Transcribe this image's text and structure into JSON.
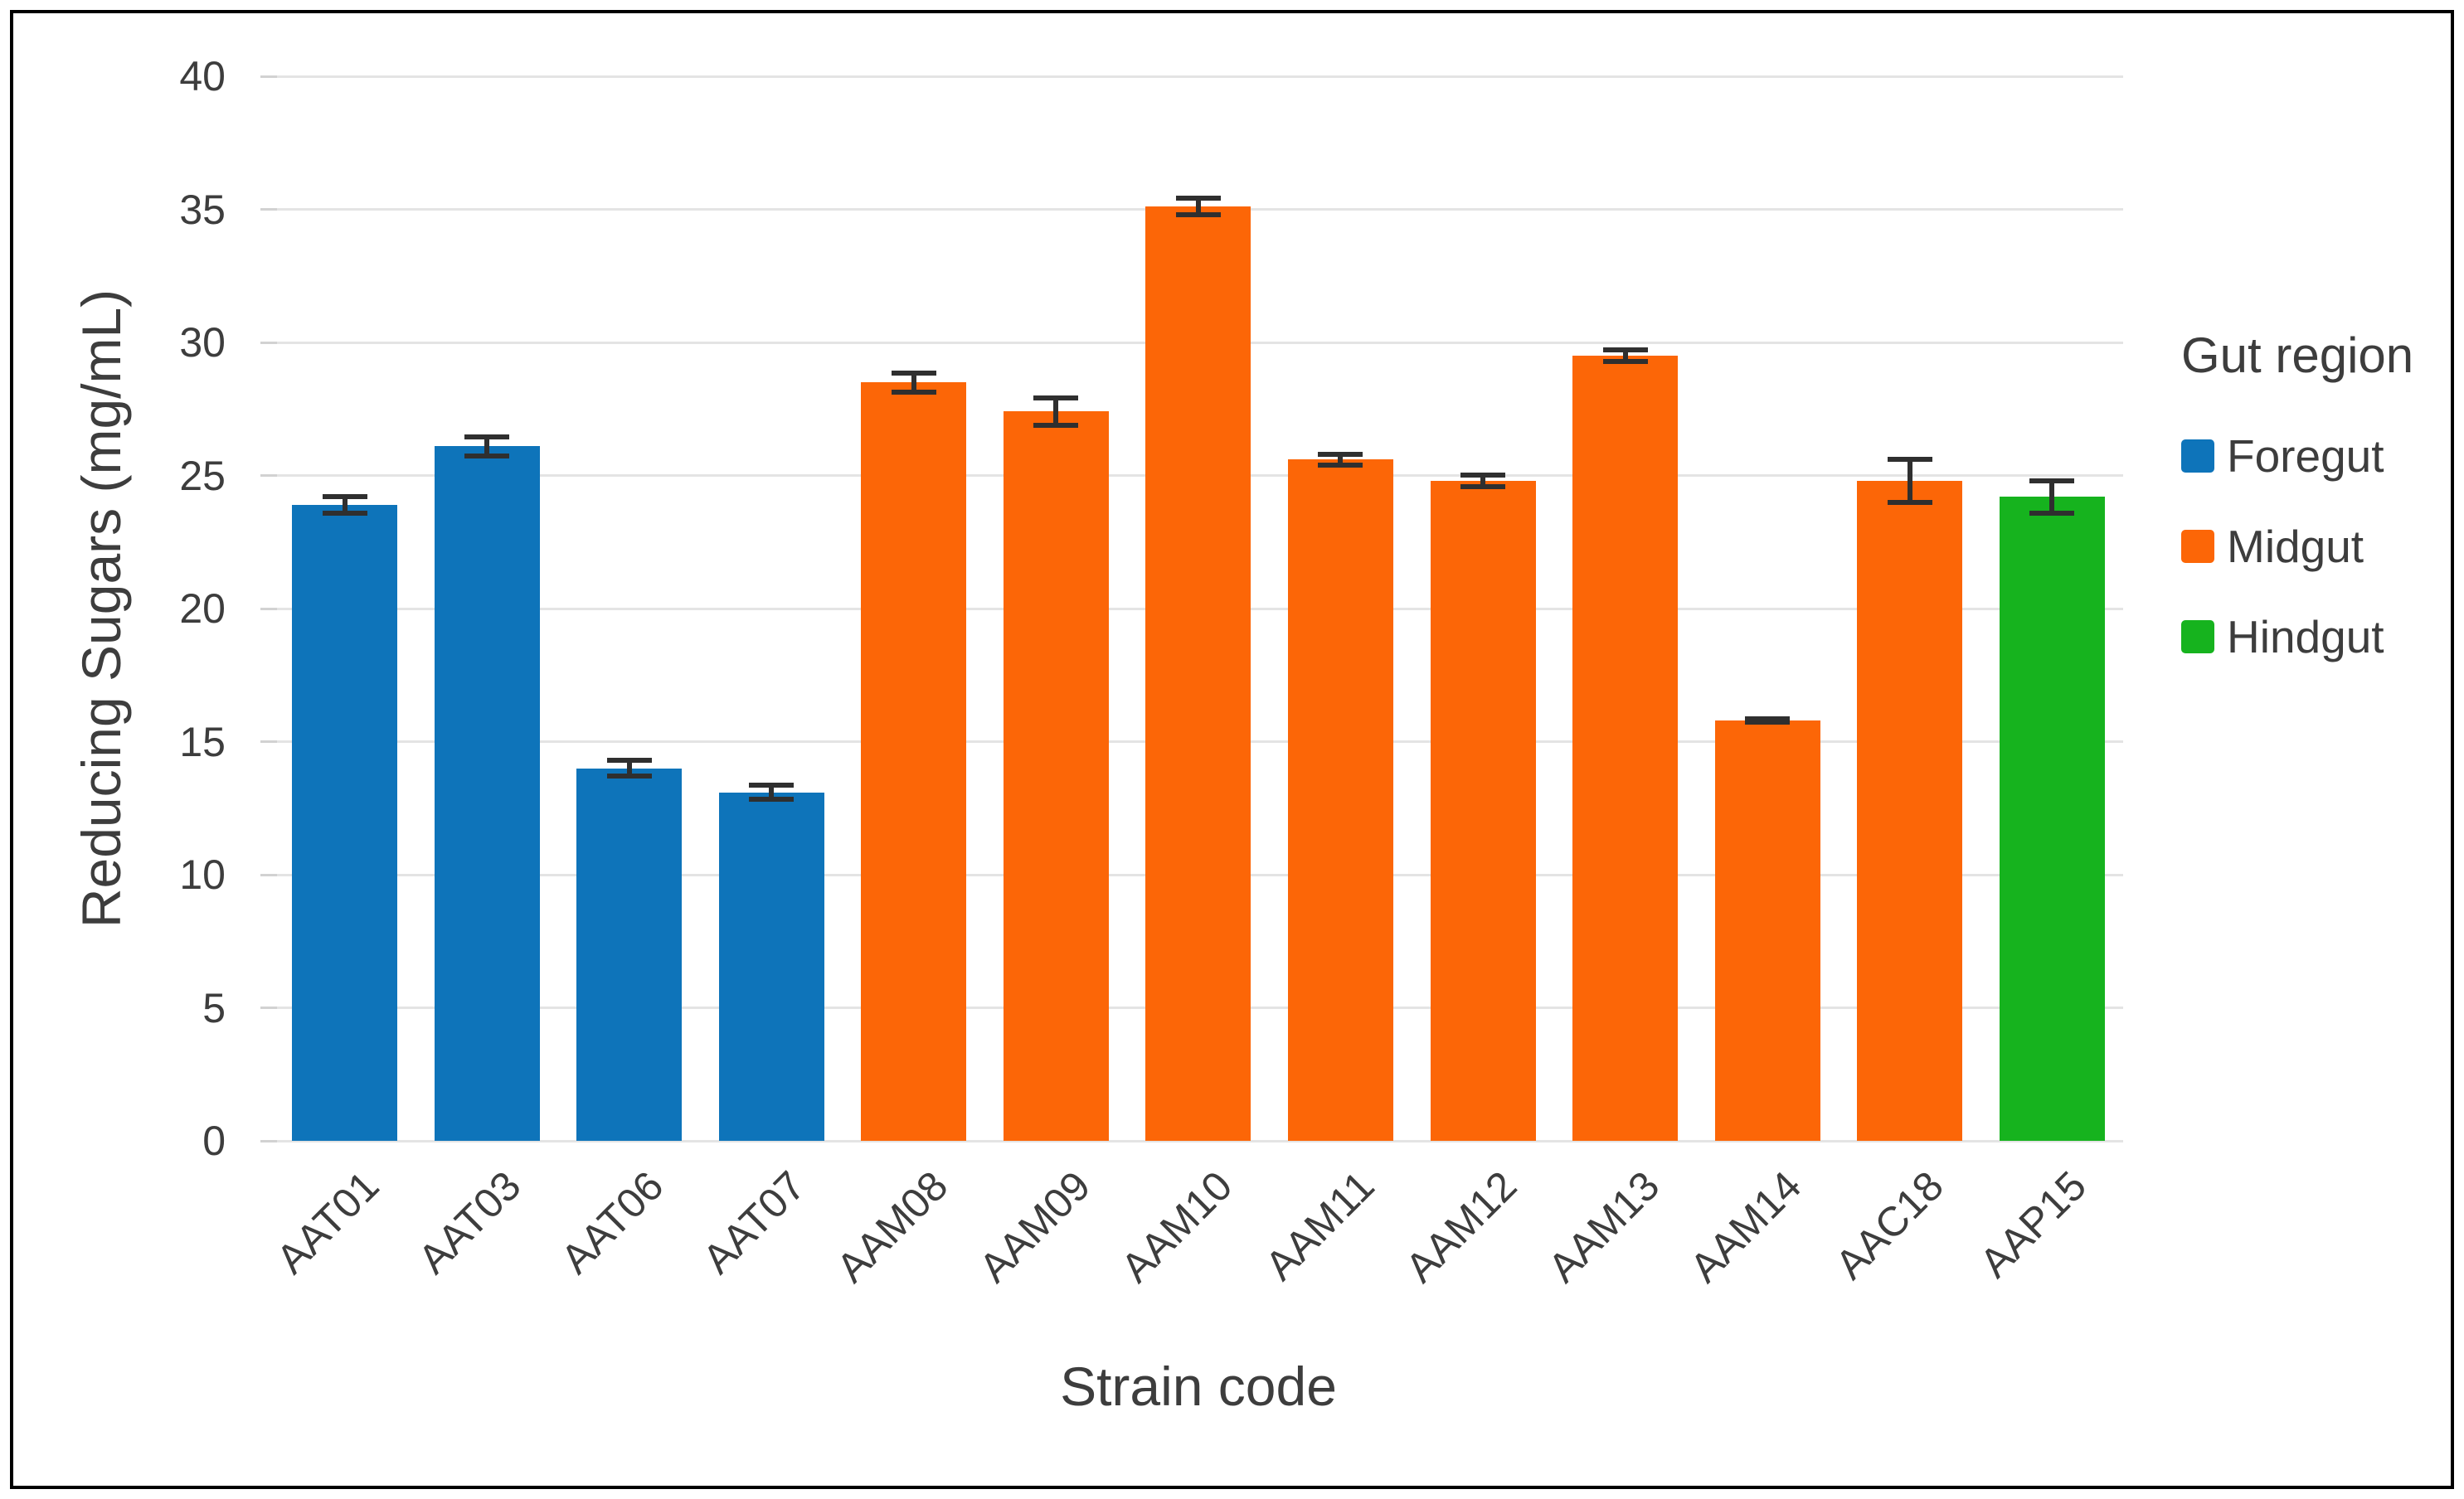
{
  "figure": {
    "y_axis_title": "Reducing Sugars (mg/mL)",
    "x_axis_title": "Strain code"
  },
  "legend": {
    "title": "Gut region",
    "items": [
      {
        "label": "Foregut",
        "color": "#0e74ba"
      },
      {
        "label": "Midgut",
        "color": "#fc6607"
      },
      {
        "label": "Hindgut",
        "color": "#16b31e"
      }
    ]
  },
  "chart_data": {
    "type": "bar",
    "title": "",
    "xlabel": "Strain code",
    "ylabel": "Reducing Sugars (mg/mL)",
    "ylim": [
      0,
      40
    ],
    "yticks": [
      0,
      5,
      10,
      15,
      20,
      25,
      30,
      35,
      40
    ],
    "grid": "horizontal",
    "legend_position": "right",
    "legend_title": "Gut region",
    "categories": [
      "AAT01",
      "AAT03",
      "AAT06",
      "AAT07",
      "AAM08",
      "AAM09",
      "AAM10",
      "AAM11",
      "AAM12",
      "AAM13",
      "AAM14",
      "AAC18",
      "AAP15"
    ],
    "series": [
      {
        "name": "Reducing Sugars (mg/mL)",
        "values": [
          23.9,
          26.1,
          14.0,
          13.1,
          28.5,
          27.4,
          35.1,
          25.6,
          24.8,
          29.5,
          15.8,
          24.8,
          24.2
        ]
      }
    ],
    "error_bars": [
      0.4,
      0.45,
      0.4,
      0.35,
      0.45,
      0.6,
      0.4,
      0.3,
      0.3,
      0.3,
      0.15,
      0.9,
      0.7
    ],
    "groups": [
      "Foregut",
      "Foregut",
      "Foregut",
      "Foregut",
      "Midgut",
      "Midgut",
      "Midgut",
      "Midgut",
      "Midgut",
      "Midgut",
      "Midgut",
      "Midgut",
      "Hindgut"
    ],
    "group_colors": {
      "Foregut": "#0e74ba",
      "Midgut": "#fc6607",
      "Hindgut": "#16b31e"
    },
    "colors": {
      "gridline": "#e4e4e4",
      "tick": "#d2d2d2",
      "text": "#3d3d3d",
      "error_bar": "#2f2f2f"
    }
  }
}
